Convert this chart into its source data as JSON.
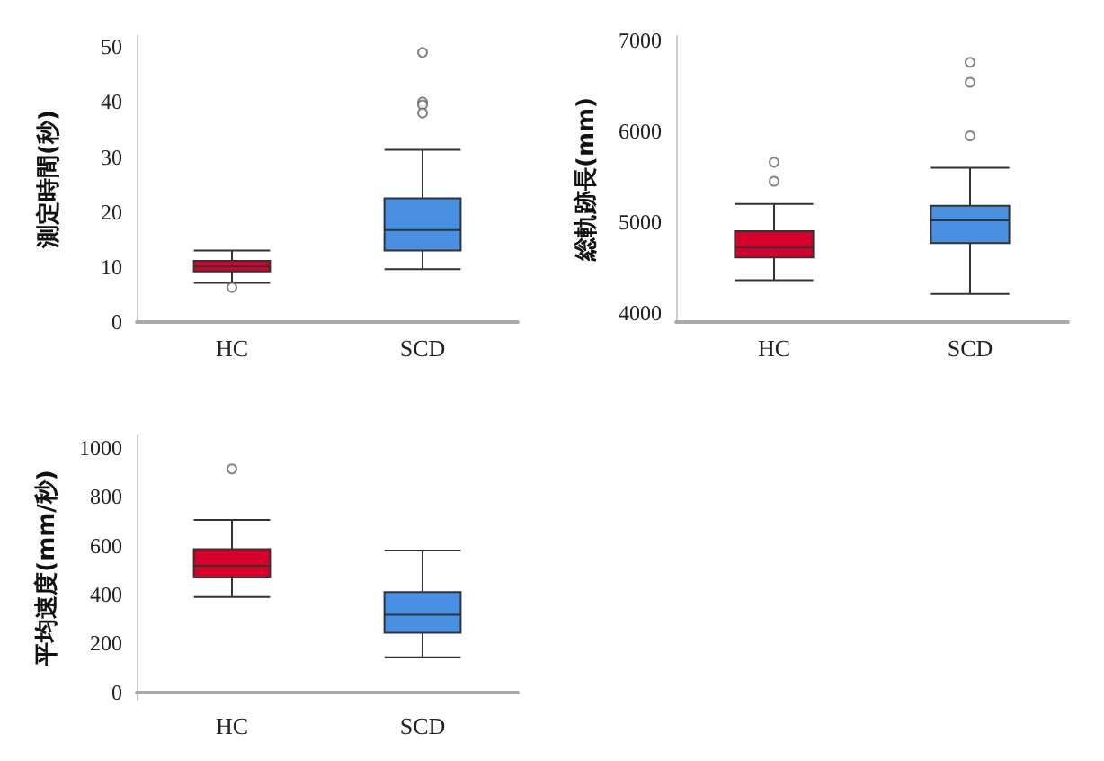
{
  "chart_data": [
    {
      "type": "box",
      "ylabel": "測定時間(秒)",
      "categories": [
        "HC",
        "SCD"
      ],
      "colors": [
        "#d7002c",
        "#4a90e2"
      ],
      "ylim": [
        0,
        52
      ],
      "yticks": [
        0,
        10,
        20,
        30,
        40,
        50
      ],
      "marker": "circle",
      "boxes": [
        {
          "low": 7.1,
          "q1": 9.2,
          "median": 10.1,
          "q3": 11.1,
          "high": 13,
          "outliers": [
            6.3
          ]
        },
        {
          "low": 9.6,
          "q1": 13,
          "median": 16.7,
          "q3": 22.5,
          "high": 31.3,
          "outliers": [
            49,
            40,
            39.5,
            38
          ]
        }
      ]
    },
    {
      "type": "box",
      "ylabel": "総軌跡長(mm)",
      "categories": [
        "HC",
        "SCD"
      ],
      "colors": [
        "#d7002c",
        "#4a90e2"
      ],
      "ylim": [
        3900,
        7050
      ],
      "yticks": [
        4000,
        5000,
        6000,
        7000
      ],
      "marker": "circle",
      "boxes": [
        {
          "low": 4360,
          "q1": 4610,
          "median": 4720,
          "q3": 4900,
          "high": 5200,
          "outliers": [
            5660,
            5450
          ]
        },
        {
          "low": 4210,
          "q1": 4770,
          "median": 5020,
          "q3": 5180,
          "high": 5600,
          "outliers": [
            6760,
            6540,
            5950
          ]
        }
      ]
    },
    {
      "type": "box",
      "ylabel": "平均速度(mm/秒)",
      "categories": [
        "HC",
        "SCD"
      ],
      "colors": [
        "#d7002c",
        "#4a90e2"
      ],
      "ylim": [
        -30,
        1050
      ],
      "yticks": [
        0,
        200,
        400,
        600,
        800,
        1000
      ],
      "marker": "circle",
      "boxes": [
        {
          "low": 390,
          "q1": 470,
          "median": 517,
          "q3": 585,
          "high": 705,
          "outliers": [
            913
          ]
        },
        {
          "low": 144,
          "q1": 244,
          "median": 317,
          "q3": 410,
          "high": 580
        }
      ]
    }
  ]
}
